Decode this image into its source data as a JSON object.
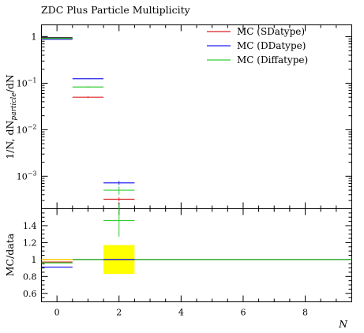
{
  "chart_data": [
    {
      "type": "step",
      "title": "ZDC Plus Particle Multiplicity",
      "ylabel": "1/N, dN_particle/dN",
      "yscale": "log",
      "ylim": [
        0.0002,
        1.8
      ],
      "xlim": [
        -0.5,
        9.5
      ],
      "y_tick_values": [
        1,
        0.1,
        0.01,
        0.001
      ],
      "y_tick_labels": [
        "1",
        "10^-1",
        "10^-2",
        "10^-3"
      ],
      "legend": {
        "position": "top-right"
      },
      "bins": [
        [
          -0.5,
          0.5
        ],
        [
          0.5,
          1.5
        ],
        [
          1.5,
          2.5
        ]
      ],
      "data_marker": {
        "x": 0,
        "y": 0.95,
        "color": "#000000"
      },
      "series": [
        {
          "name": "MC (SDatype)",
          "color": "#dd2222",
          "values": [
            0.9,
            0.05,
            0.00032
          ],
          "errors": [
            0.01,
            0.002,
            3e-05
          ]
        },
        {
          "name": "MC (DDatype)",
          "color": "#2222ee",
          "values": [
            0.88,
            0.125,
            0.00072
          ],
          "errors": [
            0.01,
            0.003,
            7e-05
          ]
        },
        {
          "name": "MC (Diffatype)",
          "color": "#33cc33",
          "values": [
            0.92,
            0.083,
            0.0005
          ],
          "errors": [
            0.01,
            0.003,
            0.0001
          ]
        }
      ]
    },
    {
      "type": "step",
      "ylabel": "MC/data",
      "xlabel": "N",
      "ylim": [
        0.5,
        1.6
      ],
      "xlim": [
        -0.5,
        9.5
      ],
      "x_tick_values": [
        0,
        2,
        4,
        6,
        8
      ],
      "x_tick_labels": [
        "0",
        "2",
        "4",
        "6",
        "8"
      ],
      "y_tick_values": [
        0.6,
        0.8,
        1,
        1.2,
        1.4
      ],
      "y_tick_labels": [
        "0.6",
        "0.8",
        "1",
        "1.2",
        "1.4"
      ],
      "reference_line": 1.0,
      "uncertainty_band": {
        "x": [
          1.5,
          2.5
        ],
        "y": [
          0.83,
          1.17
        ],
        "color": "#ffff00"
      },
      "series": [
        {
          "name": "MC (SDatype)",
          "color": "#dd2222",
          "values": [
            0.97,
            null,
            1.0
          ],
          "errors": [
            0,
            0,
            0
          ]
        },
        {
          "name": "MC (DDatype)",
          "color": "#2222ee",
          "values": [
            0.91,
            null,
            1.0
          ],
          "errors": [
            0,
            0,
            0
          ]
        },
        {
          "name": "MC (Diffatype)",
          "color": "#33cc33",
          "values": [
            0.96,
            null,
            1.46
          ],
          "errors": [
            0,
            0,
            0.19
          ]
        }
      ],
      "data_reference_bins": [
        [
          -0.5,
          0.5,
          1.0
        ],
        [
          0.5,
          1.5,
          1.0
        ]
      ]
    }
  ]
}
